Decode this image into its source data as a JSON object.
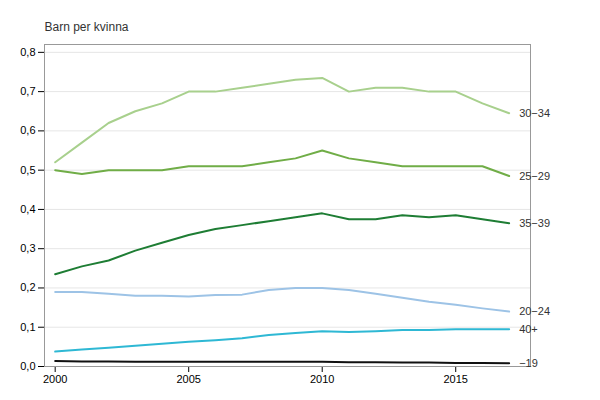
{
  "chart_data": {
    "type": "line",
    "ylabel": "Barn per kvinna",
    "x": [
      2000,
      2001,
      2002,
      2003,
      2004,
      2005,
      2006,
      2007,
      2008,
      2009,
      2010,
      2011,
      2012,
      2013,
      2014,
      2015,
      2016,
      2017
    ],
    "series": [
      {
        "name": "30−34",
        "color": "#a8d08d",
        "values": [
          0.52,
          0.57,
          0.62,
          0.65,
          0.67,
          0.7,
          0.7,
          0.71,
          0.72,
          0.73,
          0.735,
          0.7,
          0.71,
          0.71,
          0.7,
          0.7,
          0.67,
          0.645
        ]
      },
      {
        "name": "25−29",
        "color": "#70ad47",
        "values": [
          0.5,
          0.49,
          0.5,
          0.5,
          0.5,
          0.51,
          0.51,
          0.51,
          0.52,
          0.53,
          0.55,
          0.53,
          0.52,
          0.51,
          0.51,
          0.51,
          0.51,
          0.485
        ]
      },
      {
        "name": "35−39",
        "color": "#1e7d34",
        "values": [
          0.235,
          0.255,
          0.27,
          0.295,
          0.315,
          0.335,
          0.35,
          0.36,
          0.37,
          0.38,
          0.39,
          0.375,
          0.375,
          0.385,
          0.38,
          0.385,
          0.375,
          0.365
        ]
      },
      {
        "name": "20−24",
        "color": "#9dc3e6",
        "values": [
          0.19,
          0.19,
          0.185,
          0.18,
          0.18,
          0.178,
          0.182,
          0.183,
          0.195,
          0.2,
          0.2,
          0.195,
          0.185,
          0.175,
          0.165,
          0.157,
          0.148,
          0.14
        ]
      },
      {
        "name": "40+",
        "color": "#2eb8d4",
        "values": [
          0.038,
          0.043,
          0.048,
          0.053,
          0.058,
          0.063,
          0.067,
          0.072,
          0.08,
          0.085,
          0.09,
          0.088,
          0.09,
          0.093,
          0.093,
          0.095,
          0.095,
          0.095
        ]
      },
      {
        "name": "−19",
        "color": "#111111",
        "values": [
          0.014,
          0.013,
          0.013,
          0.012,
          0.012,
          0.012,
          0.012,
          0.012,
          0.012,
          0.012,
          0.012,
          0.011,
          0.011,
          0.01,
          0.01,
          0.009,
          0.009,
          0.008
        ]
      }
    ],
    "xlim": [
      1999.6,
      2017.8
    ],
    "xticks": [
      2000,
      2005,
      2010,
      2015
    ],
    "ylim": [
      0.0,
      0.82
    ],
    "yticks": [
      {
        "value": 0.0,
        "label": "0,0"
      },
      {
        "value": 0.1,
        "label": "0,1"
      },
      {
        "value": 0.2,
        "label": "0,2"
      },
      {
        "value": 0.3,
        "label": "0,3"
      },
      {
        "value": 0.4,
        "label": "0,4"
      },
      {
        "value": 0.5,
        "label": "0,5"
      },
      {
        "value": 0.6,
        "label": "0,6"
      },
      {
        "value": 0.7,
        "label": "0,7"
      },
      {
        "value": 0.8,
        "label": "0,8"
      }
    ],
    "grid": true
  }
}
